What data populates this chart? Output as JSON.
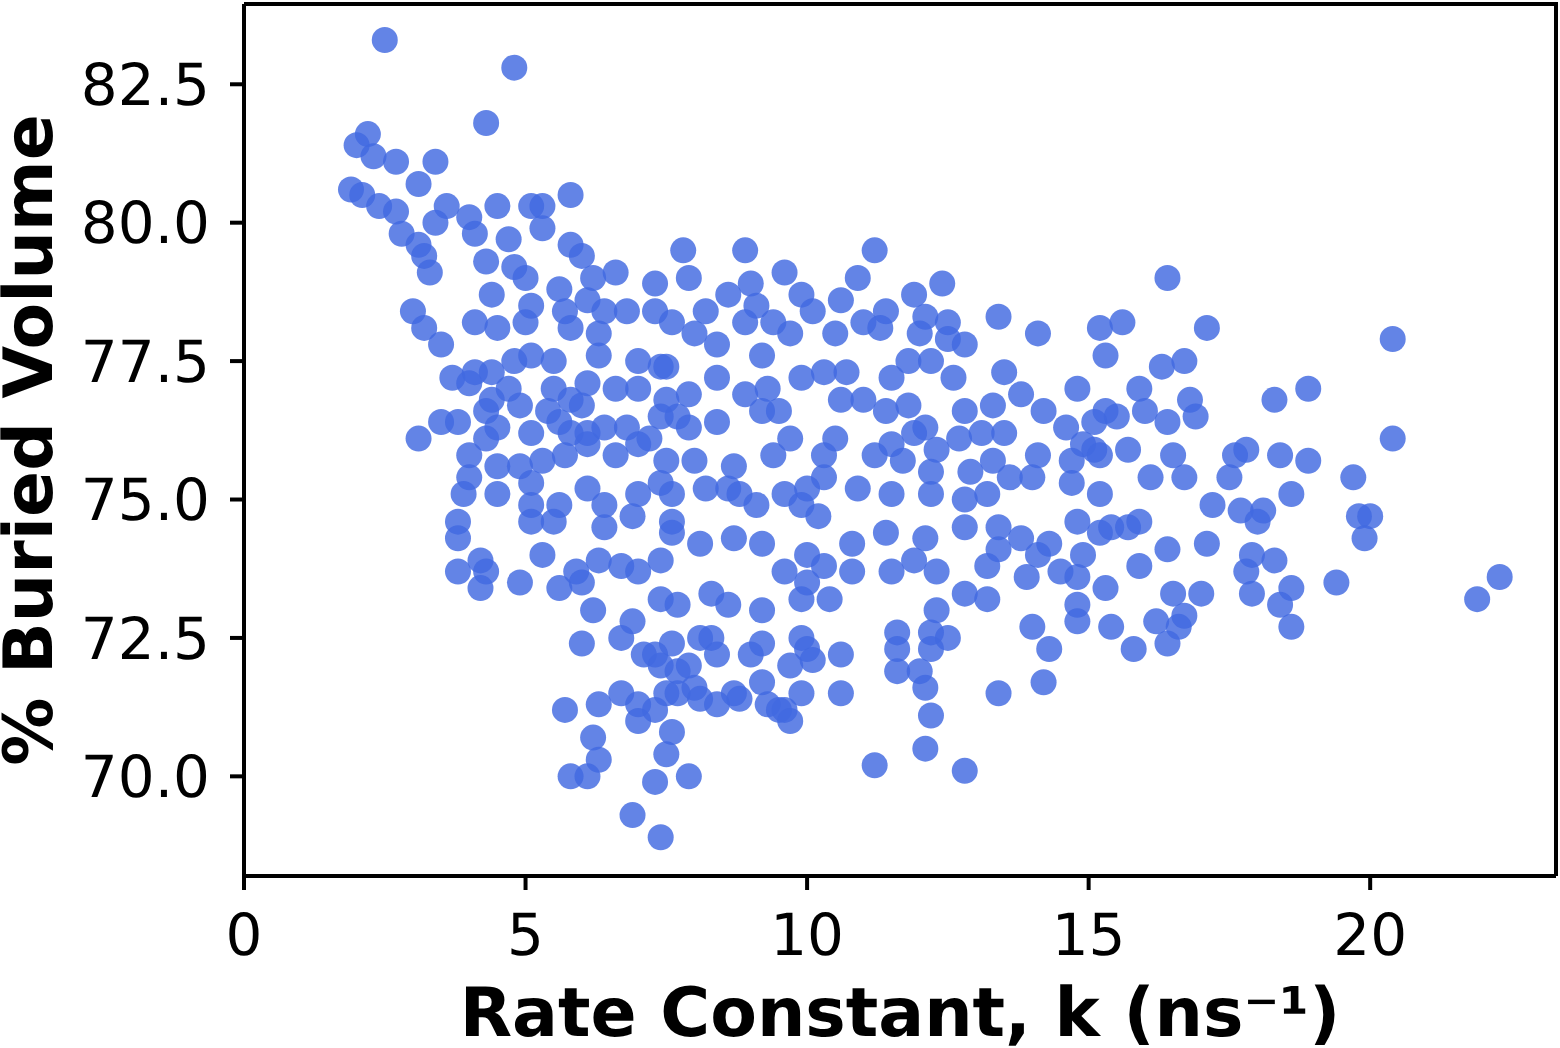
{
  "chart_data": {
    "type": "scatter",
    "xlabel": "Rate Constant, k (ns⁻¹)",
    "ylabel": "% Buried Volume",
    "color": "#4169e1",
    "marker": "circle",
    "xlim": [
      0,
      23.3
    ],
    "ylim": [
      68.2,
      83.95
    ],
    "xticks": [
      0,
      5,
      10,
      15,
      20
    ],
    "yticks": [
      {
        "value": 70,
        "label": "70.0"
      },
      72.5,
      {
        "value": 75,
        "label": "75.0"
      },
      77.5,
      {
        "value": 80,
        "label": "80.0"
      },
      82.5
    ],
    "x": [
      2.5,
      4.8,
      4.3,
      2.2,
      2.0,
      2.3,
      2.7,
      3.4,
      3.1,
      1.9,
      2.1,
      2.4,
      2.7,
      3.6,
      3.4,
      4.0,
      4.5,
      5.1,
      5.3,
      5.8,
      5.3,
      2.8,
      4.1,
      3.1,
      4.7,
      5.8,
      6.0,
      3.2,
      3.3,
      4.3,
      4.8,
      5.0,
      6.6,
      5.6,
      6.2,
      4.4,
      6.1,
      7.3,
      3.0,
      5.1,
      5.7,
      6.4,
      6.8,
      7.3,
      3.2,
      4.1,
      4.5,
      5.8,
      6.3,
      3.5,
      3.7,
      4.0,
      4.4,
      4.8,
      5.1,
      5.5,
      6.3,
      7.0,
      7.4,
      5.5,
      6.1,
      6.6,
      4.3,
      4.9,
      6.0,
      6.8,
      7.4,
      3.1,
      3.5,
      3.8,
      4.5,
      5.1,
      5.8,
      6.4,
      7.2,
      4.0,
      4.0,
      4.5,
      3.9,
      4.5,
      5.1,
      5.1,
      5.6,
      6.1,
      6.4,
      5.1,
      5.5,
      6.4,
      7.0,
      6.9,
      7.4,
      3.8,
      3.8,
      3.8,
      4.2,
      4.3,
      4.2,
      4.9,
      5.3,
      5.6,
      5.9,
      6.0,
      6.3,
      6.2,
      6.7,
      7.0,
      7.4,
      7.4,
      6.0,
      6.7,
      6.9,
      7.1,
      7.4,
      5.7,
      6.3,
      6.7,
      7.0,
      7.5,
      6.2,
      6.3,
      5.8,
      6.1,
      7.3,
      6.9,
      7.4,
      7.6,
      7.8,
      8.9,
      11.2,
      9.6,
      10.9,
      12.4,
      7.9,
      9.0,
      8.6,
      9.9,
      10.6,
      11.9,
      9.1,
      11.4,
      12.1,
      13.4,
      14.1,
      15.2,
      15.3,
      7.6,
      8.0,
      8.4,
      8.9,
      9.7,
      10.1,
      10.5,
      11.3,
      12.5,
      12.8,
      12.0,
      9.2,
      7.5,
      7.9,
      8.4,
      8.9,
      10.3,
      10.7,
      10.6,
      11.0,
      11.5,
      11.8,
      12.2,
      12.6,
      13.5,
      14.8,
      7.7,
      8.4,
      9.2,
      9.5,
      9.7,
      10.5,
      11.4,
      11.8,
      12.1,
      12.8,
      13.3,
      13.8,
      14.2,
      14.6,
      15.3,
      14.9,
      11.9,
      13.5,
      12.7,
      8.0,
      8.6,
      7.6,
      8.1,
      8.7,
      9.1,
      9.2,
      9.9,
      9.6,
      10.0,
      10.4,
      10.8,
      10.8,
      11.5,
      10.2,
      11.4,
      12.1,
      12.8,
      11.9,
      12.3,
      12.8,
      13.2,
      13.4,
      13.9,
      14.3,
      14.8,
      15.2,
      14.8,
      15.4,
      14.0,
      14.3,
      14.2,
      13.4,
      11.6,
      11.6,
      11.6,
      12.1,
      12.2,
      12.3,
      12.5,
      12.2,
      12.1,
      11.2,
      12.8,
      7.6,
      8.1,
      7.7,
      8.0,
      8.7,
      9.0,
      9.2,
      8.4,
      9.3,
      9.6,
      9.9,
      10.0,
      9.7,
      10.6,
      10.6,
      7.5,
      7.9,
      8.3,
      9.2,
      11.5,
      12.3,
      13.3,
      14.0,
      14.7,
      15.1,
      10.3,
      10.9,
      10.0,
      12.2,
      16.4,
      15.6,
      17.1,
      20.4,
      16.3,
      16.7,
      15.9,
      16.8,
      18.3,
      18.9,
      20.4,
      16.4,
      15.5,
      16.9,
      18.4,
      18.9,
      17.6,
      17.8,
      17.5,
      19.7,
      18.6,
      19.8,
      20.0,
      19.9,
      17.2,
      17.7,
      18.1,
      18.0,
      16.7,
      16.1,
      15.7,
      15.2,
      15.7,
      16.4,
      17.1,
      17.9,
      18.3,
      18.6,
      18.4,
      18.6,
      17.9,
      17.8,
      19.4,
      17.0,
      16.5,
      16.2,
      16.6,
      16.4,
      15.8,
      15.3,
      22.3,
      21.9,
      15.9,
      7.3,
      7.9,
      8.3,
      8.4,
      9.2,
      9.9,
      10.1,
      7.3,
      7.7,
      8.1,
      8.8,
      9.5,
      9.7,
      7.0,
      12.0,
      12.5,
      11.7,
      12.2,
      11.5,
      12.2,
      13.1,
      15.1,
      14.7,
      14.1,
      12.9,
      13.2,
      13.6,
      16.0,
      16.5,
      15.4,
      15.9,
      15.2,
      14.9,
      14.5,
      14.8,
      14.8,
      16.7,
      13.4,
      13.8,
      14.1,
      13.2,
      12.8,
      5.0,
      8.2,
      9.4,
      11.0,
      9.3,
      9.9,
      7.5,
      7.9,
      7.0,
      5.8,
      5.6,
      6.1,
      4.7,
      4.4,
      5.4,
      4.1,
      4.3,
      4.9,
      5.3,
      5.7,
      6.1,
      6.6,
      7.0,
      7.5,
      8.7,
      9.4,
      11.2,
      7.6,
      8.2,
      8.8,
      9.6,
      10.3,
      7.6,
      10.0,
      10.3,
      7.7,
      8.6,
      9.9
    ],
    "values": [
      83.3,
      82.8,
      81.8,
      81.6,
      81.4,
      81.2,
      81.1,
      81.1,
      80.7,
      80.6,
      80.5,
      80.3,
      80.2,
      80.3,
      80.0,
      80.1,
      80.3,
      80.3,
      80.3,
      80.5,
      79.9,
      79.8,
      79.8,
      79.6,
      79.7,
      79.6,
      79.4,
      79.4,
      79.1,
      79.3,
      79.2,
      79.0,
      79.1,
      78.8,
      79.0,
      78.7,
      78.6,
      78.9,
      78.4,
      78.5,
      78.4,
      78.4,
      78.4,
      78.4,
      78.1,
      78.2,
      78.1,
      78.1,
      78.0,
      77.8,
      77.2,
      77.1,
      77.3,
      77.5,
      77.6,
      77.5,
      77.6,
      77.5,
      77.4,
      77.0,
      77.1,
      77.0,
      76.6,
      76.7,
      76.7,
      76.3,
      76.5,
      76.1,
      76.4,
      76.4,
      76.3,
      76.2,
      76.2,
      76.3,
      76.1,
      75.8,
      75.4,
      75.6,
      75.1,
      75.1,
      75.3,
      74.9,
      74.9,
      75.2,
      74.9,
      74.6,
      74.6,
      74.5,
      75.1,
      74.7,
      75.3,
      74.6,
      74.3,
      73.7,
      73.9,
      73.7,
      73.4,
      73.5,
      74.0,
      73.4,
      73.7,
      73.5,
      73.9,
      73.0,
      73.8,
      73.7,
      73.9,
      73.2,
      72.4,
      72.5,
      72.8,
      72.2,
      72.0,
      71.2,
      71.3,
      71.5,
      71.3,
      71.5,
      70.7,
      70.3,
      70.0,
      70.0,
      69.9,
      69.3,
      68.9,
      70.8,
      79.5,
      79.5,
      79.5,
      79.1,
      79.0,
      78.9,
      79.0,
      78.9,
      78.7,
      78.7,
      78.6,
      78.7,
      78.5,
      78.4,
      78.3,
      78.3,
      78.0,
      78.1,
      77.6,
      78.2,
      78.0,
      77.8,
      78.2,
      78.0,
      78.4,
      78.0,
      78.1,
      78.2,
      77.8,
      78.0,
      77.6,
      77.4,
      76.9,
      77.2,
      76.9,
      77.3,
      77.3,
      76.8,
      76.8,
      77.2,
      77.5,
      77.5,
      77.2,
      77.3,
      77.0,
      76.5,
      76.4,
      76.6,
      76.6,
      76.1,
      76.1,
      76.6,
      76.7,
      76.3,
      76.6,
      76.7,
      76.9,
      76.6,
      76.3,
      76.6,
      76.0,
      76.2,
      76.2,
      76.1,
      75.7,
      75.2,
      74.6,
      74.2,
      74.3,
      74.9,
      74.2,
      74.9,
      73.7,
      73.5,
      73.2,
      74.2,
      73.7,
      73.7,
      74.7,
      74.4,
      74.3,
      74.5,
      73.9,
      73.7,
      73.3,
      73.2,
      74.1,
      73.6,
      74.2,
      74.6,
      75.1,
      73.1,
      72.7,
      72.7,
      72.3,
      71.7,
      71.5,
      72.6,
      72.3,
      71.9,
      71.6,
      71.1,
      73.0,
      72.5,
      72.3,
      70.5,
      70.2,
      70.1,
      72.4,
      72.5,
      71.9,
      71.6,
      71.5,
      72.2,
      71.7,
      71.3,
      71.3,
      71.2,
      71.5,
      72.3,
      72.0,
      72.2,
      71.5,
      70.4,
      70.0,
      73.3,
      73.0,
      76.0,
      75.9,
      75.7,
      75.4,
      75.7,
      75.9,
      75.8,
      75.2,
      75.2,
      75.1,
      79.0,
      78.2,
      78.1,
      77.9,
      77.4,
      77.5,
      77.0,
      76.8,
      76.8,
      77.0,
      76.1,
      76.4,
      76.5,
      76.5,
      75.8,
      75.7,
      75.8,
      75.9,
      75.4,
      75.4,
      75.1,
      74.7,
      74.7,
      74.3,
      74.9,
      74.8,
      74.8,
      74.6,
      75.4,
      75.4,
      75.9,
      75.8,
      74.5,
      74.1,
      74.2,
      74.0,
      73.9,
      73.4,
      73.1,
      72.7,
      73.3,
      73.7,
      73.5,
      73.3,
      73.3,
      72.8,
      72.7,
      72.4,
      72.3,
      73.4,
      73.6,
      73.2,
      73.8,
      72.2,
      72.0,
      72.5,
      72.2,
      72.4,
      72.5,
      72.1,
      71.2,
      71.5,
      71.4,
      71.4,
      71.2,
      71.0,
      71.0,
      71.9,
      77.9,
      75.7,
      75.5,
      75.1,
      72.6,
      76.2,
      76.4,
      75.3,
      75.8,
      75.5,
      75.1,
      75.4,
      76.6,
      75.8,
      74.5,
      74.6,
      74.4,
      74.0,
      73.7,
      73.6,
      72.8,
      72.9,
      74.5,
      74.3,
      74.0,
      73.8,
      75.0,
      78.2,
      78.4,
      78.2,
      78.2,
      77.0,
      77.2,
      76.8,
      76.3,
      77.0,
      76.8,
      76.4,
      76.2,
      77.0,
      76.8,
      76.6,
      77.3,
      76.1,
      75.6,
      75.7,
      75.8,
      76.0,
      75.8,
      76.0,
      75.7,
      75.6,
      75.8,
      75.8,
      75.1,
      75.2,
      75.1,
      75.1,
      75.4,
      74.4,
      74.0,
      73.8,
      73.1,
      73.1,
      73.2
    ]
  }
}
